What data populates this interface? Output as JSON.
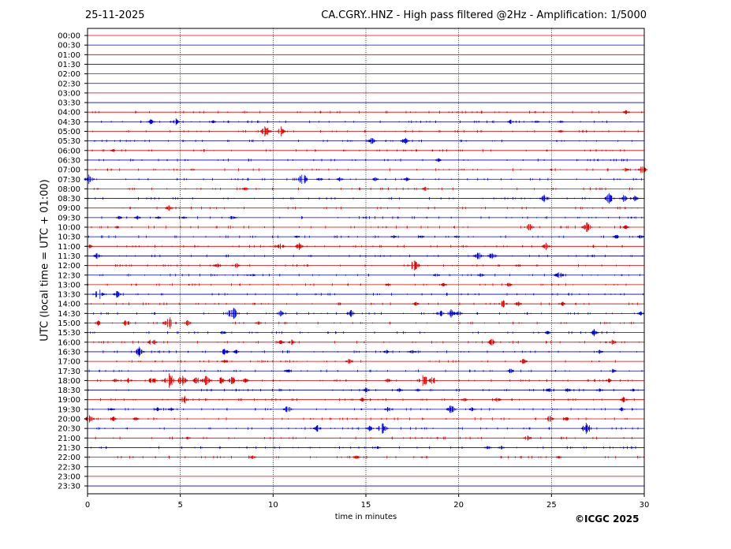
{
  "header": {
    "date": "25-11-2025",
    "title": "CA.CGRY..HNZ - High pass filtered @2Hz - Amplification: 1/5000"
  },
  "credit": "©ICGC 2025",
  "chart_data": {
    "type": "line",
    "title": "CA.CGRY..HNZ - High pass filtered @2Hz - Amplification: 1/5000",
    "xlabel": "time in minutes",
    "ylabel": "UTC (local time = UTC + 01:00)",
    "xlim": [
      0,
      30
    ],
    "x_ticks": [
      0,
      5,
      10,
      15,
      20,
      25,
      30
    ],
    "grid": "vertical dotted lines at 5, 10, 15, 20, 25",
    "colors": {
      "even_rows": "#e00000",
      "odd_rows": "#0000dd"
    },
    "rows": [
      {
        "label": "00:00",
        "events": []
      },
      {
        "label": "00:30",
        "events": []
      },
      {
        "label": "01:00",
        "events": []
      },
      {
        "label": "01:30",
        "events": []
      },
      {
        "label": "02:00",
        "events": []
      },
      {
        "label": "02:30",
        "events": []
      },
      {
        "label": "03:00",
        "events": []
      },
      {
        "label": "03:30",
        "events": []
      },
      {
        "label": "04:00",
        "events": [
          [
            29.0,
            3
          ]
        ]
      },
      {
        "label": "04:30",
        "events": [
          [
            3.4,
            4
          ],
          [
            4.7,
            6
          ],
          [
            6.8,
            2
          ],
          [
            22.8,
            3
          ],
          [
            24.2,
            2
          ],
          [
            25.5,
            2
          ]
        ]
      },
      {
        "label": "05:00",
        "events": [
          [
            9.6,
            8
          ],
          [
            10.4,
            7
          ],
          [
            25.5,
            2
          ]
        ]
      },
      {
        "label": "05:30",
        "events": [
          [
            15.3,
            5
          ],
          [
            17.1,
            5
          ]
        ]
      },
      {
        "label": "06:00",
        "events": [
          [
            1.4,
            2
          ]
        ]
      },
      {
        "label": "06:30",
        "events": [
          [
            18.9,
            3
          ]
        ]
      },
      {
        "label": "07:00",
        "events": [
          [
            29.0,
            3
          ],
          [
            29.9,
            6
          ]
        ]
      },
      {
        "label": "07:30",
        "events": [
          [
            0.1,
            7
          ],
          [
            11.6,
            8
          ],
          [
            12.5,
            3
          ],
          [
            13.6,
            3
          ],
          [
            15.5,
            3
          ],
          [
            17.2,
            3
          ]
        ]
      },
      {
        "label": "08:00",
        "events": [
          [
            8.5,
            3
          ],
          [
            18.2,
            3
          ]
        ]
      },
      {
        "label": "08:30",
        "events": [
          [
            24.6,
            5
          ],
          [
            28.1,
            7
          ],
          [
            28.9,
            5
          ],
          [
            29.5,
            4
          ]
        ]
      },
      {
        "label": "09:00",
        "events": [
          [
            4.4,
            4
          ]
        ]
      },
      {
        "label": "09:30",
        "events": [
          [
            1.7,
            3
          ],
          [
            2.7,
            3
          ],
          [
            3.8,
            2
          ],
          [
            5.2,
            2
          ],
          [
            7.8,
            3
          ]
        ]
      },
      {
        "label": "10:00",
        "events": [
          [
            1.6,
            2
          ],
          [
            23.8,
            6
          ],
          [
            26.9,
            7
          ],
          [
            29.0,
            3
          ]
        ]
      },
      {
        "label": "10:30",
        "events": [
          [
            11.3,
            2
          ],
          [
            16.5,
            2
          ],
          [
            18.0,
            2
          ],
          [
            19.9,
            2
          ],
          [
            28.5,
            3
          ],
          [
            29.8,
            3
          ]
        ]
      },
      {
        "label": "11:00",
        "events": [
          [
            0.1,
            3
          ],
          [
            10.4,
            5
          ],
          [
            11.4,
            5
          ],
          [
            24.7,
            5
          ]
        ]
      },
      {
        "label": "11:30",
        "events": [
          [
            0.5,
            4
          ],
          [
            21.1,
            6
          ],
          [
            21.8,
            6
          ]
        ]
      },
      {
        "label": "12:00",
        "events": [
          [
            7.0,
            3
          ],
          [
            8.0,
            4
          ],
          [
            17.6,
            8
          ],
          [
            23.2,
            2
          ]
        ]
      },
      {
        "label": "12:30",
        "events": [
          [
            8.9,
            2
          ],
          [
            18.8,
            3
          ],
          [
            21.2,
            3
          ],
          [
            25.4,
            6
          ]
        ]
      },
      {
        "label": "13:00",
        "events": [
          [
            16.2,
            2
          ],
          [
            19.2,
            3
          ],
          [
            22.7,
            3
          ]
        ]
      },
      {
        "label": "13:30",
        "events": [
          [
            0.6,
            8
          ],
          [
            1.6,
            5
          ]
        ]
      },
      {
        "label": "14:00",
        "events": [
          [
            17.7,
            3
          ],
          [
            22.4,
            5
          ],
          [
            23.2,
            4
          ],
          [
            25.6,
            3
          ]
        ]
      },
      {
        "label": "14:30",
        "events": [
          [
            7.8,
            10
          ],
          [
            10.4,
            4
          ],
          [
            14.2,
            5
          ],
          [
            19.0,
            5
          ],
          [
            19.6,
            6
          ],
          [
            20.0,
            4
          ],
          [
            29.8,
            3
          ]
        ]
      },
      {
        "label": "15:00",
        "events": [
          [
            0.6,
            4
          ],
          [
            2.1,
            5
          ],
          [
            4.4,
            9
          ],
          [
            5.4,
            4
          ],
          [
            9.2,
            3
          ]
        ]
      },
      {
        "label": "15:30",
        "events": [
          [
            7.3,
            3
          ],
          [
            24.8,
            3
          ],
          [
            27.3,
            5
          ]
        ]
      },
      {
        "label": "16:00",
        "events": [
          [
            3.5,
            6
          ],
          [
            10.4,
            4
          ],
          [
            11.0,
            4
          ],
          [
            21.8,
            5
          ],
          [
            28.3,
            4
          ]
        ]
      },
      {
        "label": "16:30",
        "events": [
          [
            2.8,
            7
          ],
          [
            7.4,
            5
          ],
          [
            8.0,
            3
          ],
          [
            16.1,
            3
          ],
          [
            17.5,
            3
          ],
          [
            27.6,
            3
          ]
        ]
      },
      {
        "label": "17:00",
        "events": [
          [
            7.4,
            3
          ],
          [
            14.1,
            4
          ],
          [
            23.5,
            4
          ]
        ]
      },
      {
        "label": "17:30",
        "events": [
          [
            10.8,
            3
          ],
          [
            22.8,
            4
          ],
          [
            28.3,
            3
          ]
        ]
      },
      {
        "label": "18:00",
        "events": [
          [
            1.5,
            3
          ],
          [
            2.2,
            4
          ],
          [
            3.5,
            6
          ],
          [
            4.4,
            10
          ],
          [
            5.1,
            8
          ],
          [
            5.9,
            6
          ],
          [
            6.4,
            7
          ],
          [
            7.2,
            5
          ],
          [
            7.8,
            6
          ],
          [
            8.5,
            4
          ],
          [
            16.2,
            3
          ],
          [
            18.1,
            9
          ],
          [
            18.6,
            6
          ],
          [
            28.1,
            3
          ]
        ]
      },
      {
        "label": "18:30",
        "events": [
          [
            15.0,
            4
          ],
          [
            16.8,
            3
          ],
          [
            17.8,
            2
          ],
          [
            24.9,
            4
          ],
          [
            25.9,
            3
          ],
          [
            27.6,
            3
          ],
          [
            29.4,
            2
          ]
        ]
      },
      {
        "label": "19:00",
        "events": [
          [
            5.2,
            6
          ],
          [
            14.8,
            3
          ],
          [
            20.3,
            3
          ],
          [
            22.1,
            4
          ],
          [
            28.9,
            4
          ]
        ]
      },
      {
        "label": "19:30",
        "events": [
          [
            1.3,
            3
          ],
          [
            3.8,
            3
          ],
          [
            4.5,
            3
          ],
          [
            10.8,
            6
          ],
          [
            16.2,
            4
          ],
          [
            19.6,
            6
          ],
          [
            20.7,
            3
          ],
          [
            28.8,
            3
          ]
        ]
      },
      {
        "label": "20:00",
        "events": [
          [
            0.1,
            6
          ],
          [
            1.4,
            3
          ],
          [
            2.6,
            3
          ],
          [
            24.9,
            5
          ],
          [
            25.8,
            3
          ]
        ]
      },
      {
        "label": "20:30",
        "events": [
          [
            12.4,
            5
          ],
          [
            15.2,
            4
          ],
          [
            15.9,
            8
          ],
          [
            26.9,
            8
          ]
        ]
      },
      {
        "label": "21:00",
        "events": [
          [
            5.4,
            2
          ],
          [
            23.7,
            4
          ]
        ]
      },
      {
        "label": "21:30",
        "events": [
          [
            15.6,
            3
          ],
          [
            21.6,
            3
          ],
          [
            22.3,
            3
          ]
        ]
      },
      {
        "label": "22:00",
        "events": [
          [
            8.9,
            3
          ],
          [
            14.5,
            3
          ],
          [
            25.4,
            2
          ]
        ]
      },
      {
        "label": "22:30",
        "events": []
      },
      {
        "label": "23:00",
        "events": []
      },
      {
        "label": "23:30",
        "events": []
      }
    ]
  }
}
